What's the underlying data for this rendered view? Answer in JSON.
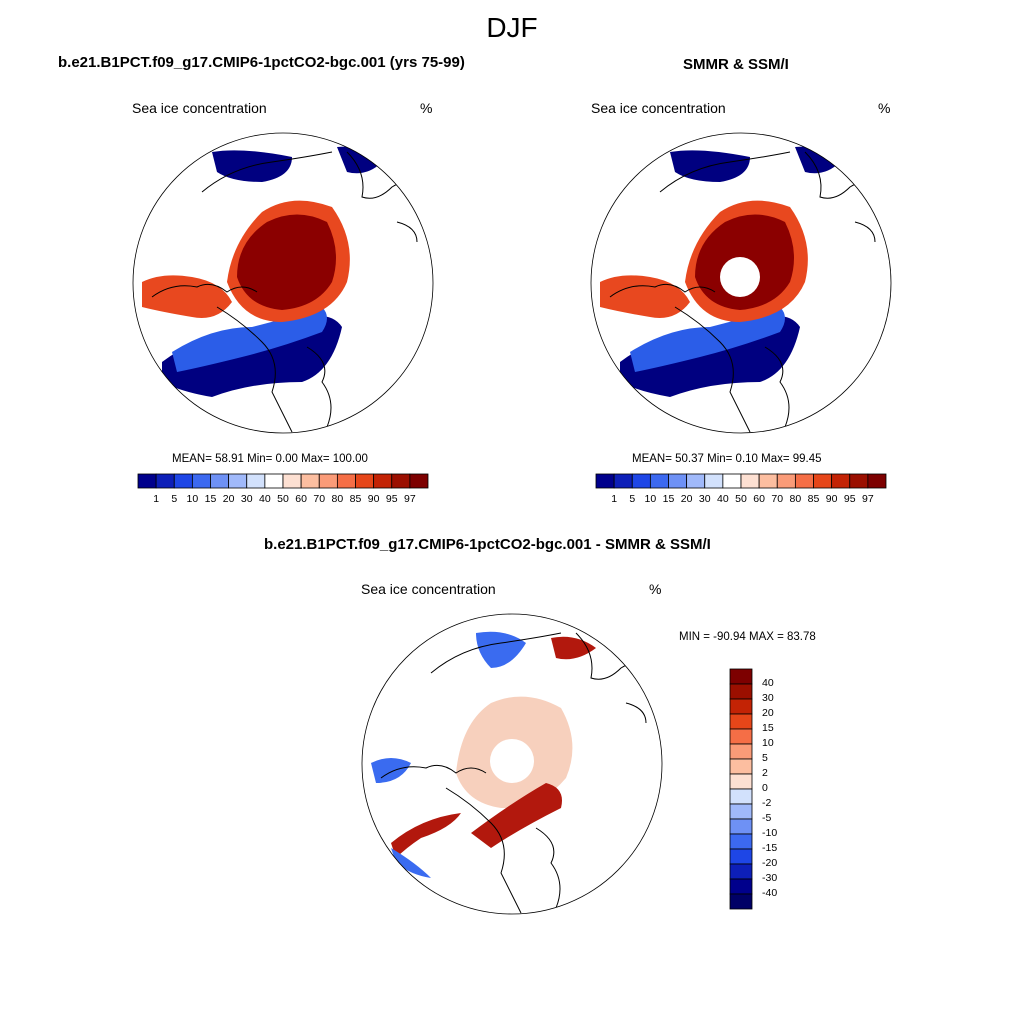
{
  "season": "DJF",
  "panels": [
    {
      "title": "b.e21.B1PCT.f09_g17.CMIP6-1pctCO2-bgc.001 (yrs 75-99)",
      "field": "Sea ice concentration",
      "units": "%",
      "stats": "MEAN=  58.91  Min=   0.00  Max= 100.00"
    },
    {
      "title": "SMMR & SSM/I",
      "field": "Sea ice concentration",
      "units": "%",
      "stats": "MEAN=  50.37  Min=   0.10  Max=  99.45"
    },
    {
      "title": "b.e21.B1PCT.f09_g17.CMIP6-1pctCO2-bgc.001 - SMMR & SSM/I",
      "field": "Sea ice concentration",
      "units": "%",
      "stats": "MIN = -90.94 MAX =  83.78"
    }
  ],
  "colorbar_abs": {
    "ticks": [
      "1",
      "5",
      "10",
      "15",
      "20",
      "30",
      "40",
      "50",
      "60",
      "70",
      "80",
      "85",
      "90",
      "95",
      "97"
    ],
    "colors": [
      "#00008c",
      "#0d1fb8",
      "#1e46e6",
      "#3c69f0",
      "#6e91f5",
      "#a0b9fa",
      "#d2e1fc",
      "#ffffff",
      "#fde0d2",
      "#fcbea0",
      "#fa9b78",
      "#f56e46",
      "#e64619",
      "#c32305",
      "#9b0f00",
      "#7d0000"
    ]
  },
  "colorbar_diff": {
    "ticks": [
      "40",
      "30",
      "20",
      "15",
      "10",
      "5",
      "2",
      "0",
      "-2",
      "-5",
      "-10",
      "-15",
      "-20",
      "-30",
      "-40"
    ],
    "colors": [
      "#7d0000",
      "#9b0f00",
      "#c32305",
      "#e64619",
      "#f56e46",
      "#fa9b78",
      "#fcbea0",
      "#fde0d2",
      "#d2e1fc",
      "#a0b9fa",
      "#6e91f5",
      "#3c69f0",
      "#1e46e6",
      "#0d1fb8",
      "#00008c",
      "#000066"
    ]
  },
  "legend": {
    "ice_high": "#8b0000",
    "ice_mid": "#e8481f",
    "ice_low": "#f4a582",
    "open_low": "#2b5de8",
    "open_none": "#000080",
    "diff_pos": "#f7d0bd",
    "diff_strong_pos": "#b2180d",
    "diff_neg": "#3a6bf0"
  }
}
